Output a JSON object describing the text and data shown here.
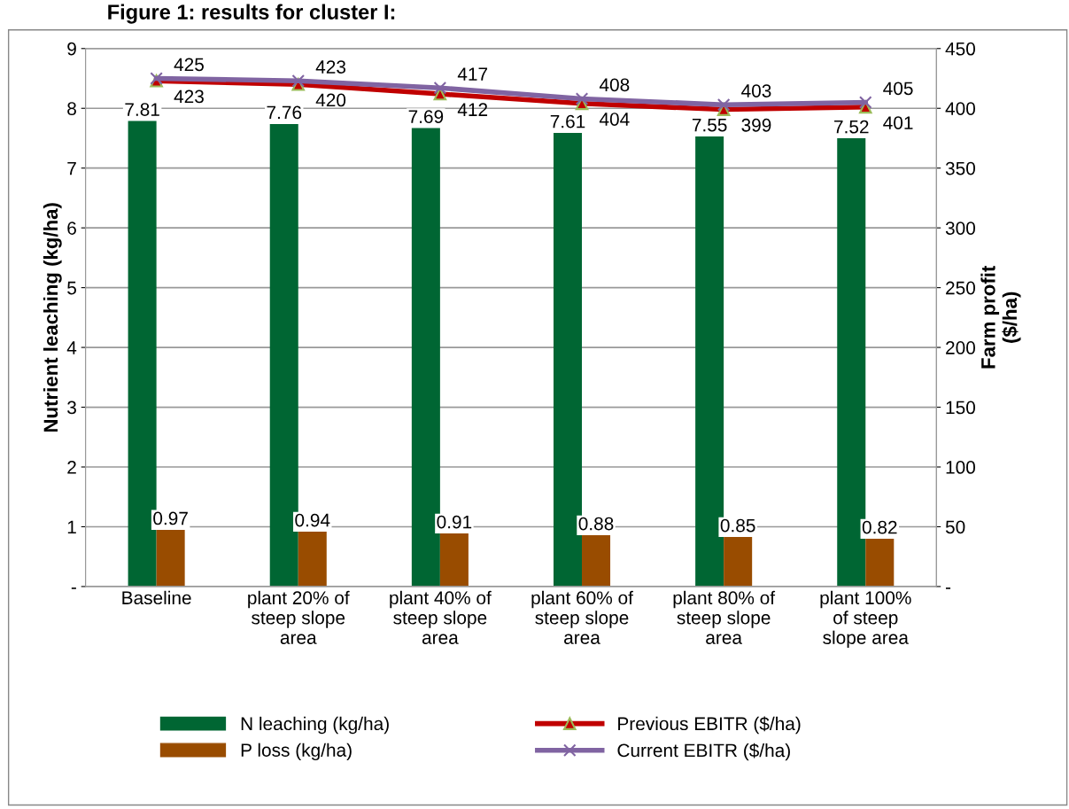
{
  "chart_data": {
    "type": "bar",
    "title": "Figure 1: results for cluster I:",
    "ylabel": "Nutrient leaching (kg/ha)",
    "y2label": "Farm profit\n($/ha)",
    "categories": [
      "Baseline",
      "plant 20% of\nsteep slope\narea",
      "plant 40% of\nsteep slope\narea",
      "plant 60% of\nsteep slope\narea",
      "plant 80% of\nsteep slope\narea",
      "plant 100%\nof steep\nslope area"
    ],
    "series": [
      {
        "name": "N leaching (kg/ha)",
        "color": "#006633",
        "values": [
          7.81,
          7.76,
          7.69,
          7.61,
          7.55,
          7.52
        ]
      },
      {
        "name": "P loss (kg/ha)",
        "color": "#994c00",
        "values": [
          0.97,
          0.94,
          0.91,
          0.88,
          0.85,
          0.82
        ]
      },
      {
        "name": "Previous EBITR ($/ha)",
        "type": "line",
        "axis": "y2",
        "color": "#c00000",
        "marker": "triangle",
        "values": [
          423,
          420,
          412,
          404,
          399,
          401
        ]
      },
      {
        "name": "Current EBITR ($/ha)",
        "type": "line",
        "axis": "y2",
        "color": "#8064a2",
        "marker": "cross",
        "values": [
          425,
          423,
          417,
          408,
          403,
          405
        ]
      }
    ],
    "ylim": [
      0,
      9
    ],
    "yticks": [
      {
        "value": 0,
        "label": "-"
      },
      1,
      2,
      3,
      4,
      5,
      6,
      7,
      8,
      9
    ],
    "y2lim": [
      0,
      450
    ],
    "y2ticks": [
      {
        "value": 0,
        "label": "-"
      },
      50,
      100,
      150,
      200,
      250,
      300,
      350,
      400,
      450
    ],
    "grid": "y",
    "legend": "bottom",
    "data_labels": true
  }
}
